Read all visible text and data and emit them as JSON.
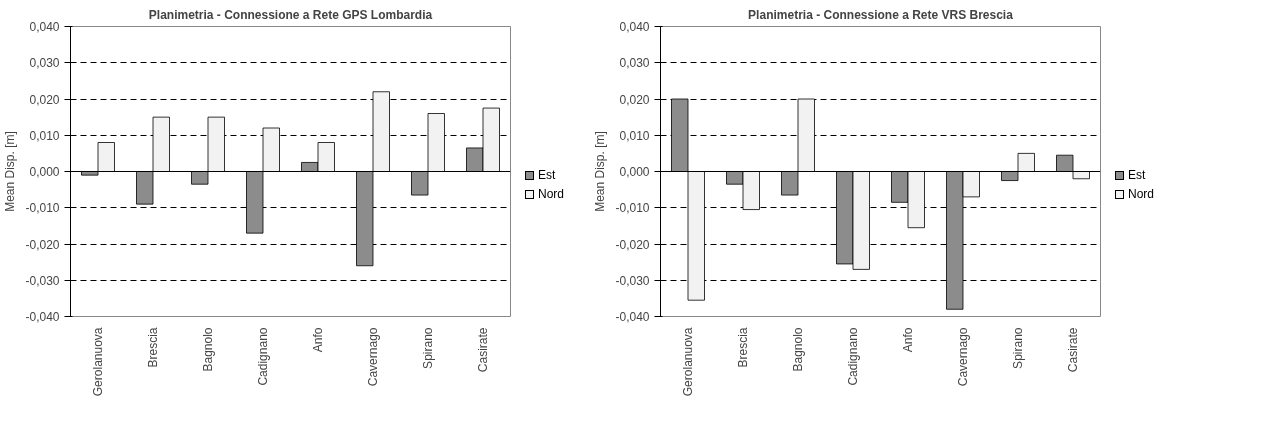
{
  "chart_data": [
    {
      "type": "bar",
      "title": "Planimetria - Connessione a Rete GPS Lombardia",
      "ylabel": "Mean Disp. [m]",
      "categories": [
        "Gerolanuova",
        "Brescia",
        "Bagnolo",
        "Cadignano",
        "Anfo",
        "Cavernago",
        "Spirano",
        "Casirate"
      ],
      "series": [
        {
          "name": "Est",
          "color": "#8c8c8c",
          "values": [
            -0.001,
            -0.009,
            -0.0035,
            -0.017,
            0.0025,
            -0.026,
            -0.0065,
            0.0065
          ]
        },
        {
          "name": "Nord",
          "color": "#f2f2f2",
          "values": [
            0.008,
            0.015,
            0.015,
            0.012,
            0.008,
            0.022,
            0.016,
            0.0175
          ]
        }
      ],
      "ylim": [
        -0.04,
        0.04
      ],
      "yticks": [
        {
          "value": -0.04,
          "label": "-0,040"
        },
        {
          "value": -0.03,
          "label": "-0,030"
        },
        {
          "value": -0.02,
          "label": "-0,020"
        },
        {
          "value": -0.01,
          "label": "-0,010"
        },
        {
          "value": 0,
          "label": "0,000"
        },
        {
          "value": 0.01,
          "label": "0,010"
        },
        {
          "value": 0.02,
          "label": "0,020"
        },
        {
          "value": 0.03,
          "label": "0,030"
        },
        {
          "value": 0.04,
          "label": "0,040"
        }
      ],
      "grid": "y",
      "legend": "right"
    },
    {
      "type": "bar",
      "title": "Planimetria - Connessione a Rete VRS Brescia",
      "ylabel": "Mean Disp. [m]",
      "categories": [
        "Gerolanuova",
        "Brescia",
        "Bagnolo",
        "Cadignano",
        "Anfo",
        "Cavernago",
        "Spirano",
        "Casirate"
      ],
      "series": [
        {
          "name": "Est",
          "color": "#8c8c8c",
          "values": [
            0.02,
            -0.0035,
            -0.0065,
            -0.0255,
            -0.0085,
            -0.038,
            -0.0025,
            0.0045
          ]
        },
        {
          "name": "Nord",
          "color": "#f2f2f2",
          "values": [
            -0.0355,
            -0.0105,
            0.02,
            -0.027,
            -0.0155,
            -0.007,
            0.005,
            -0.002
          ]
        }
      ],
      "ylim": [
        -0.04,
        0.04
      ],
      "yticks": [
        {
          "value": -0.04,
          "label": "-0,040"
        },
        {
          "value": -0.03,
          "label": "-0,030"
        },
        {
          "value": -0.02,
          "label": "-0,020"
        },
        {
          "value": -0.01,
          "label": "-0,010"
        },
        {
          "value": 0,
          "label": "0,000"
        },
        {
          "value": 0.01,
          "label": "0,010"
        },
        {
          "value": 0.02,
          "label": "0,020"
        },
        {
          "value": 0.03,
          "label": "0,030"
        },
        {
          "value": 0.04,
          "label": "0,040"
        }
      ],
      "grid": "y",
      "legend": "right"
    }
  ]
}
